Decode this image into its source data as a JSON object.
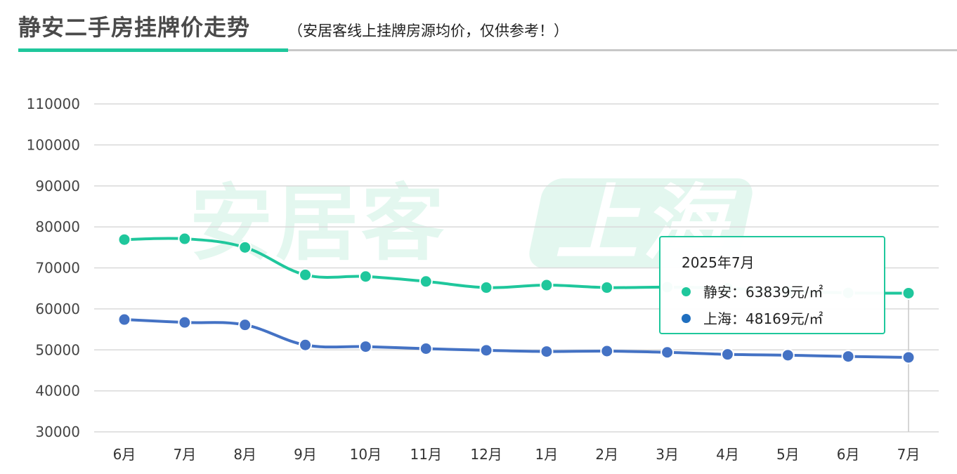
{
  "header": {
    "title": "静安二手房挂牌价走势",
    "subtitle": "（安居客线上挂牌房源均价，仅供参考！）"
  },
  "watermark": {
    "text": "安居客",
    "badge": "上海"
  },
  "colors": {
    "jingan": "#1fc79c",
    "shanghai": "#4472c4",
    "accent": "#1fc79c",
    "grid": "#d9d9d9"
  },
  "tooltip": {
    "title": "2025年7月",
    "rows": [
      {
        "label": "静安：63839元/㎡",
        "color": "#1fc79c"
      },
      {
        "label": "上海：48169元/㎡",
        "color": "#1f6fbf"
      }
    ]
  },
  "chart_data": {
    "type": "line",
    "title": "",
    "xlabel": "",
    "ylabel": "",
    "categories": [
      "6月",
      "7月",
      "8月",
      "9月",
      "10月",
      "11月",
      "12月",
      "1月",
      "2月",
      "3月",
      "4月",
      "5月",
      "6月",
      "7月"
    ],
    "y_ticks": [
      "30000",
      "40000",
      "50000",
      "60000",
      "70000",
      "80000",
      "90000",
      "100000",
      "110000"
    ],
    "ylim": [
      30000,
      110000
    ],
    "grid": true,
    "smooth": true,
    "series": [
      {
        "name": "静安",
        "color": "#1fc79c",
        "values": [
          76900,
          77100,
          75000,
          68300,
          67900,
          66700,
          65200,
          65800,
          65200,
          65300,
          65000,
          64300,
          63900,
          63839
        ]
      },
      {
        "name": "上海",
        "color": "#4472c4",
        "values": [
          57400,
          56700,
          56100,
          51200,
          50800,
          50300,
          49900,
          49600,
          49700,
          49400,
          48900,
          48700,
          48400,
          48169
        ]
      }
    ],
    "highlight_index": 13
  }
}
